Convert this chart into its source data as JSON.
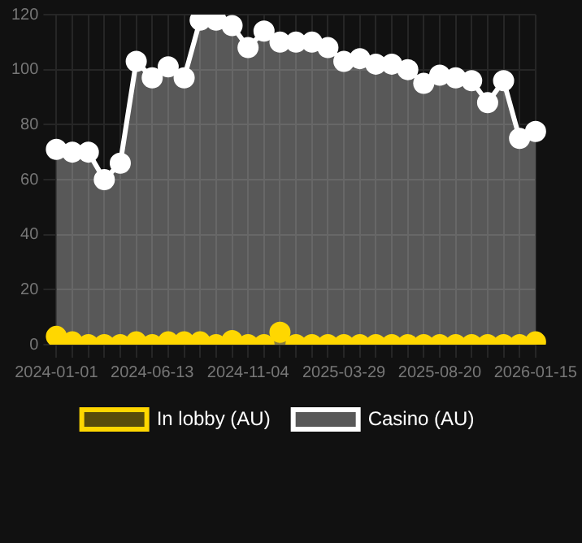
{
  "chart_data": {
    "type": "area",
    "categories": [
      "2024-01-01",
      null,
      null,
      null,
      null,
      null,
      "2024-06-13",
      null,
      null,
      null,
      null,
      null,
      "2024-11-04",
      null,
      null,
      null,
      null,
      null,
      "2025-03-29",
      null,
      null,
      null,
      null,
      null,
      "2025-08-20",
      null,
      null,
      null,
      null,
      null,
      "2026-01-15"
    ],
    "series": [
      {
        "name": "In lobby (AU)",
        "color": "#ffd700",
        "values": [
          3,
          1,
          0,
          0,
          0,
          1,
          0,
          1,
          1,
          1,
          0,
          1.5,
          0,
          0,
          4.5,
          0,
          0,
          0,
          0,
          0,
          0,
          0,
          0,
          0,
          0,
          0,
          0,
          0,
          0,
          0,
          1
        ]
      },
      {
        "name": "Casino (AU)",
        "color": "#ffffff",
        "values": [
          71,
          70,
          70,
          60,
          66,
          103,
          97,
          101,
          97,
          118,
          118,
          116,
          108,
          114,
          110,
          110,
          110,
          108,
          103,
          104,
          102,
          102,
          100,
          95,
          98,
          97,
          96,
          88,
          96,
          75,
          77.5
        ]
      }
    ],
    "ylim": [
      0,
      120
    ],
    "yticks": [
      0,
      20,
      40,
      60,
      80,
      100,
      120
    ],
    "grid": true,
    "legend": "bottom",
    "marker": "circle"
  }
}
